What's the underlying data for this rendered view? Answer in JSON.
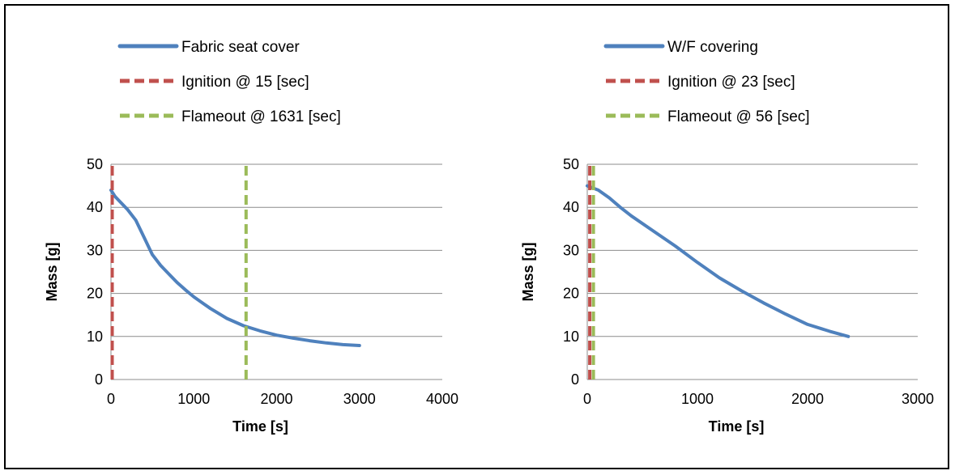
{
  "chart_data": [
    {
      "type": "line",
      "title": "",
      "xlabel": "Time [s]",
      "ylabel": "Mass [g]",
      "xlim": [
        0,
        4000
      ],
      "ylim": [
        0,
        50
      ],
      "xticks": [
        "0",
        "1000",
        "2000",
        "3000",
        "4000"
      ],
      "yticks": [
        "0",
        "10",
        "20",
        "30",
        "40",
        "50"
      ],
      "grid": "horizontal",
      "legend_position": "top-left",
      "series": [
        {
          "name": "Fabric seat cover",
          "style": "solid",
          "color": "#4F81BD",
          "x": [
            0,
            50,
            100,
            200,
            300,
            400,
            500,
            600,
            700,
            800,
            900,
            1000,
            1200,
            1400,
            1600,
            1800,
            2000,
            2200,
            2400,
            2600,
            2800,
            3000
          ],
          "y": [
            44,
            42.5,
            41.5,
            39.5,
            37,
            33,
            29,
            26.5,
            24.5,
            22.5,
            20.8,
            19.2,
            16.5,
            14.2,
            12.5,
            11.3,
            10.3,
            9.6,
            9,
            8.5,
            8.1,
            7.9
          ]
        },
        {
          "name": "Ignition @ 15 [sec]",
          "style": "dashed",
          "color": "#C0504D",
          "x": [
            15,
            15
          ],
          "y": [
            0,
            50
          ]
        },
        {
          "name": "Flameout @ 1631 [sec]",
          "style": "dashed",
          "color": "#9BBB59",
          "x": [
            1631,
            1631
          ],
          "y": [
            0,
            50
          ]
        }
      ]
    },
    {
      "type": "line",
      "title": "",
      "xlabel": "Time [s]",
      "ylabel": "Mass [g]",
      "xlim": [
        0,
        3000
      ],
      "ylim": [
        0,
        50
      ],
      "xticks": [
        "0",
        "1000",
        "2000",
        "3000"
      ],
      "yticks": [
        "0",
        "10",
        "20",
        "30",
        "40",
        "50"
      ],
      "grid": "horizontal",
      "legend_position": "top-left",
      "series": [
        {
          "name": "W/F covering",
          "style": "solid",
          "color": "#4F81BD",
          "x": [
            0,
            50,
            100,
            200,
            300,
            400,
            600,
            800,
            1000,
            1200,
            1400,
            1600,
            1800,
            2000,
            2200,
            2370
          ],
          "y": [
            45,
            44.5,
            44,
            42.2,
            40,
            38,
            34.5,
            31,
            27.2,
            23.6,
            20.6,
            17.8,
            15.2,
            12.8,
            11.2,
            10
          ]
        },
        {
          "name": "Ignition @ 23 [sec]",
          "style": "dashed",
          "color": "#C0504D",
          "x": [
            23,
            23
          ],
          "y": [
            0,
            50
          ]
        },
        {
          "name": "Flameout @ 56 [sec]",
          "style": "dashed",
          "color": "#9BBB59",
          "x": [
            56,
            56
          ],
          "y": [
            0,
            50
          ]
        }
      ]
    }
  ]
}
